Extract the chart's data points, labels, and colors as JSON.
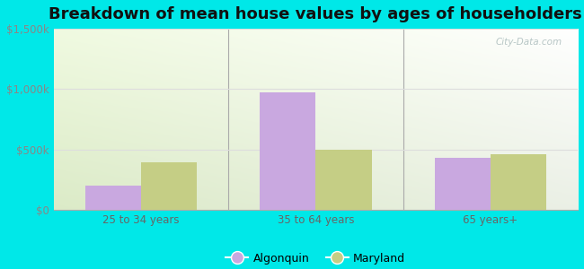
{
  "title": "Breakdown of mean house values by ages of householders",
  "categories": [
    "25 to 34 years",
    "35 to 64 years",
    "65 years+"
  ],
  "algonquin_values": [
    200000,
    975000,
    430000
  ],
  "maryland_values": [
    390000,
    500000,
    460000
  ],
  "algonquin_color": "#c9a8e0",
  "maryland_color": "#c5ce85",
  "ylim": [
    0,
    1500000
  ],
  "yticks": [
    0,
    500000,
    1000000,
    1500000
  ],
  "ytick_labels": [
    "$0",
    "$500k",
    "$1,000k",
    "$1,500k"
  ],
  "bar_width": 0.32,
  "background_outer": "#00e8e8",
  "grid_color": "#dddddd",
  "title_fontsize": 13,
  "legend_labels": [
    "Algonquin",
    "Maryland"
  ],
  "watermark": "City-Data.com",
  "gradient_top_color": "#e8f5e0",
  "gradient_bottom_color": "#d8eecc",
  "gradient_right_color": "#f8fff8"
}
